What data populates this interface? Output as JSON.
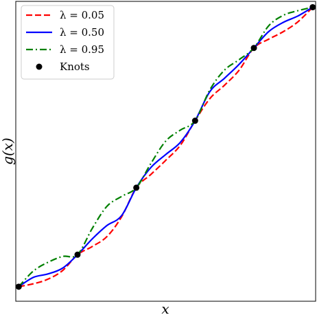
{
  "chart_data": {
    "type": "line",
    "xlabel": "x",
    "ylabel": "g(x)",
    "xlim": [
      -0.05,
      5.05
    ],
    "ylim": [
      -0.25,
      4.9
    ],
    "grid": false,
    "legend_position": "top-left",
    "knots": {
      "name": "Knots",
      "x": [
        0,
        1,
        2,
        3,
        4,
        5
      ],
      "y": [
        0,
        0.55,
        1.7,
        2.85,
        4.1,
        4.8
      ],
      "color": "#000000"
    },
    "series": [
      {
        "name": "λ = 0.05",
        "style": "dashed",
        "color": "#ff0000",
        "x": [
          0,
          0.25,
          0.5,
          0.75,
          1,
          1.25,
          1.5,
          1.75,
          2,
          2.25,
          2.5,
          2.75,
          3,
          3.25,
          3.5,
          3.75,
          4,
          4.25,
          4.5,
          4.75,
          5
        ],
        "y": [
          0,
          0.05,
          0.13,
          0.28,
          0.55,
          0.69,
          0.86,
          1.2,
          1.7,
          1.93,
          2.17,
          2.43,
          2.85,
          3.23,
          3.46,
          3.72,
          4.1,
          4.25,
          4.38,
          4.55,
          4.8
        ]
      },
      {
        "name": "λ = 0.50",
        "style": "solid",
        "color": "#0000ff",
        "x": [
          0,
          0.25,
          0.5,
          0.75,
          1,
          1.25,
          1.5,
          1.75,
          2,
          2.25,
          2.5,
          2.75,
          3,
          3.25,
          3.5,
          3.75,
          4,
          4.25,
          4.5,
          4.75,
          5
        ],
        "y": [
          0,
          0.16,
          0.22,
          0.32,
          0.55,
          0.82,
          1.05,
          1.22,
          1.7,
          2.05,
          2.27,
          2.48,
          2.85,
          3.35,
          3.58,
          3.82,
          4.1,
          4.38,
          4.54,
          4.65,
          4.8
        ]
      },
      {
        "name": "λ = 0.95",
        "style": "dashdot",
        "color": "#008000",
        "x": [
          0,
          0.25,
          0.5,
          0.75,
          1,
          1.25,
          1.5,
          1.75,
          2,
          2.25,
          2.5,
          2.75,
          3,
          3.25,
          3.5,
          3.75,
          4,
          4.25,
          4.5,
          4.75,
          5
        ],
        "y": [
          0,
          0.27,
          0.42,
          0.52,
          0.55,
          1.0,
          1.38,
          1.55,
          1.7,
          2.12,
          2.5,
          2.69,
          2.85,
          3.38,
          3.72,
          3.9,
          4.1,
          4.48,
          4.66,
          4.74,
          4.8
        ]
      }
    ]
  }
}
